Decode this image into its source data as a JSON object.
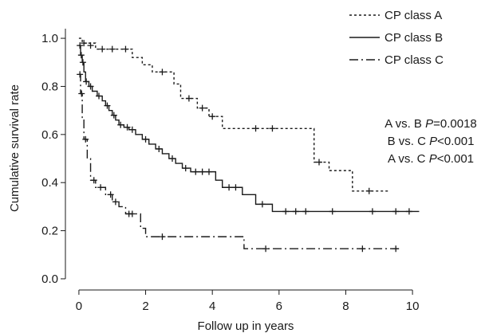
{
  "chart_data": {
    "type": "line",
    "step": true,
    "xlabel": "Follow up in years",
    "ylabel": "Cumulative survival rate",
    "xlim": [
      -0.5,
      10.5
    ],
    "ylim": [
      -0.02,
      1.04
    ],
    "xticks": [
      "0",
      "2",
      "4",
      "6",
      "8",
      "10"
    ],
    "yticks": [
      "0.0",
      "0.2",
      "0.4",
      "0.6",
      "0.8",
      "1.0"
    ],
    "grid": false,
    "legend_position": "top-right",
    "annotations": [
      {
        "prefix": "A vs. B ",
        "p": "P",
        "suffix": "=0.0018"
      },
      {
        "prefix": "B vs. C ",
        "p": "P",
        "suffix": "<0.001"
      },
      {
        "prefix": "A vs. C ",
        "p": "P",
        "suffix": "<0.001"
      }
    ],
    "series": [
      {
        "name": "CP class A",
        "dash": "dotted",
        "color": "#1a1a1a",
        "points": [
          [
            0,
            1.0
          ],
          [
            0.1,
            0.98
          ],
          [
            0.5,
            0.955
          ],
          [
            1.6,
            0.92
          ],
          [
            1.9,
            0.89
          ],
          [
            2.2,
            0.86
          ],
          [
            2.85,
            0.81
          ],
          [
            3.05,
            0.75
          ],
          [
            3.55,
            0.71
          ],
          [
            3.9,
            0.675
          ],
          [
            4.3,
            0.625
          ],
          [
            7.05,
            0.485
          ],
          [
            7.5,
            0.45
          ],
          [
            8.2,
            0.365
          ],
          [
            9.3,
            0.365
          ]
        ],
        "censors": [
          [
            0.15,
            0.98
          ],
          [
            0.35,
            0.97
          ],
          [
            0.7,
            0.955
          ],
          [
            1.0,
            0.955
          ],
          [
            1.4,
            0.955
          ],
          [
            2.5,
            0.86
          ],
          [
            3.3,
            0.75
          ],
          [
            3.7,
            0.71
          ],
          [
            4.0,
            0.675
          ],
          [
            5.3,
            0.625
          ],
          [
            5.8,
            0.625
          ],
          [
            7.2,
            0.485
          ],
          [
            8.7,
            0.365
          ]
        ]
      },
      {
        "name": "CP class B",
        "dash": "solid",
        "color": "#1a1a1a",
        "points": [
          [
            0,
            0.97
          ],
          [
            0.05,
            0.93
          ],
          [
            0.1,
            0.9
          ],
          [
            0.15,
            0.86
          ],
          [
            0.2,
            0.82
          ],
          [
            0.3,
            0.8
          ],
          [
            0.4,
            0.78
          ],
          [
            0.55,
            0.76
          ],
          [
            0.7,
            0.74
          ],
          [
            0.8,
            0.72
          ],
          [
            0.9,
            0.7
          ],
          [
            1.0,
            0.68
          ],
          [
            1.1,
            0.66
          ],
          [
            1.2,
            0.64
          ],
          [
            1.35,
            0.63
          ],
          [
            1.5,
            0.62
          ],
          [
            1.7,
            0.6
          ],
          [
            1.9,
            0.58
          ],
          [
            2.1,
            0.56
          ],
          [
            2.3,
            0.54
          ],
          [
            2.5,
            0.52
          ],
          [
            2.7,
            0.5
          ],
          [
            2.9,
            0.48
          ],
          [
            3.1,
            0.46
          ],
          [
            3.35,
            0.445
          ],
          [
            4.1,
            0.41
          ],
          [
            4.3,
            0.38
          ],
          [
            4.9,
            0.35
          ],
          [
            5.3,
            0.31
          ],
          [
            5.8,
            0.28
          ],
          [
            10.2,
            0.28
          ]
        ],
        "censors": [
          [
            0.03,
            0.97
          ],
          [
            0.07,
            0.93
          ],
          [
            0.12,
            0.9
          ],
          [
            0.22,
            0.82
          ],
          [
            0.35,
            0.8
          ],
          [
            0.6,
            0.76
          ],
          [
            0.85,
            0.72
          ],
          [
            1.05,
            0.68
          ],
          [
            1.25,
            0.64
          ],
          [
            1.45,
            0.63
          ],
          [
            1.6,
            0.62
          ],
          [
            2.0,
            0.58
          ],
          [
            2.4,
            0.54
          ],
          [
            2.8,
            0.5
          ],
          [
            3.2,
            0.46
          ],
          [
            3.5,
            0.445
          ],
          [
            3.7,
            0.445
          ],
          [
            3.9,
            0.445
          ],
          [
            4.5,
            0.38
          ],
          [
            4.7,
            0.38
          ],
          [
            5.5,
            0.31
          ],
          [
            6.2,
            0.28
          ],
          [
            6.5,
            0.28
          ],
          [
            6.8,
            0.28
          ],
          [
            7.6,
            0.28
          ],
          [
            8.8,
            0.28
          ],
          [
            9.5,
            0.28
          ],
          [
            9.9,
            0.28
          ]
        ]
      },
      {
        "name": "CP class C",
        "dash": "dashdot",
        "color": "#1a1a1a",
        "points": [
          [
            0,
            0.85
          ],
          [
            0.05,
            0.77
          ],
          [
            0.1,
            0.66
          ],
          [
            0.15,
            0.58
          ],
          [
            0.25,
            0.5
          ],
          [
            0.35,
            0.41
          ],
          [
            0.5,
            0.38
          ],
          [
            0.8,
            0.35
          ],
          [
            1.0,
            0.32
          ],
          [
            1.2,
            0.3
          ],
          [
            1.4,
            0.27
          ],
          [
            1.85,
            0.21
          ],
          [
            2.0,
            0.175
          ],
          [
            4.95,
            0.125
          ],
          [
            9.6,
            0.125
          ]
        ],
        "censors": [
          [
            0.03,
            0.85
          ],
          [
            0.08,
            0.77
          ],
          [
            0.2,
            0.58
          ],
          [
            0.45,
            0.41
          ],
          [
            0.65,
            0.38
          ],
          [
            0.95,
            0.35
          ],
          [
            1.1,
            0.32
          ],
          [
            1.5,
            0.27
          ],
          [
            1.6,
            0.27
          ],
          [
            2.5,
            0.175
          ],
          [
            5.6,
            0.125
          ],
          [
            8.5,
            0.125
          ],
          [
            9.5,
            0.125
          ]
        ]
      }
    ]
  }
}
